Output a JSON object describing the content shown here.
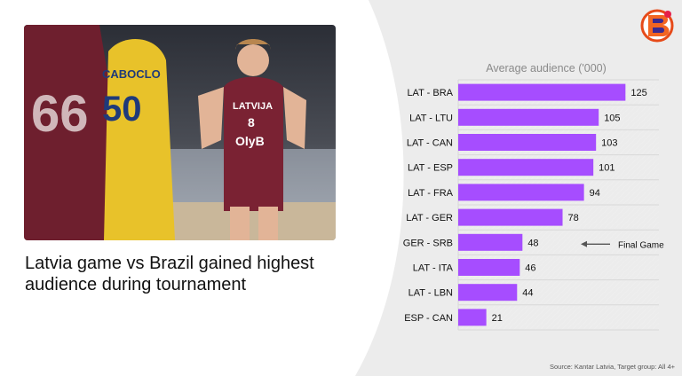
{
  "headline": "Latvia game vs Brazil gained highest audience during tournament",
  "source": "Source: Kantar Latvia, Target group: All 4+",
  "photo_jersey": {
    "team": "LATVIJA",
    "number": "8",
    "sponsor": "OlyB",
    "left_number": "66",
    "right_name": "CABOCLO",
    "right_number": "50"
  },
  "colors": {
    "bar": "#a64dff",
    "text": "#111111",
    "title": "#8a8a8a",
    "grid": "#d8d8d8",
    "maroon": "#7a2233",
    "yellow": "#e8c22a"
  },
  "chart_data": {
    "type": "bar",
    "orientation": "horizontal",
    "title": "Average audience ('000)",
    "categories": [
      "LAT - BRA",
      "LAT - LTU",
      "LAT - CAN",
      "LAT - ESP",
      "LAT - FRA",
      "LAT - GER",
      "GER - SRB",
      "LAT - ITA",
      "LAT - LBN",
      "ESP - CAN"
    ],
    "values": [
      125,
      105,
      103,
      101,
      94,
      78,
      48,
      46,
      44,
      21
    ],
    "xlim": [
      0,
      150
    ],
    "grid": true,
    "data_labels": true,
    "annotation": {
      "text": "Final Game",
      "category": "GER - SRB"
    }
  }
}
